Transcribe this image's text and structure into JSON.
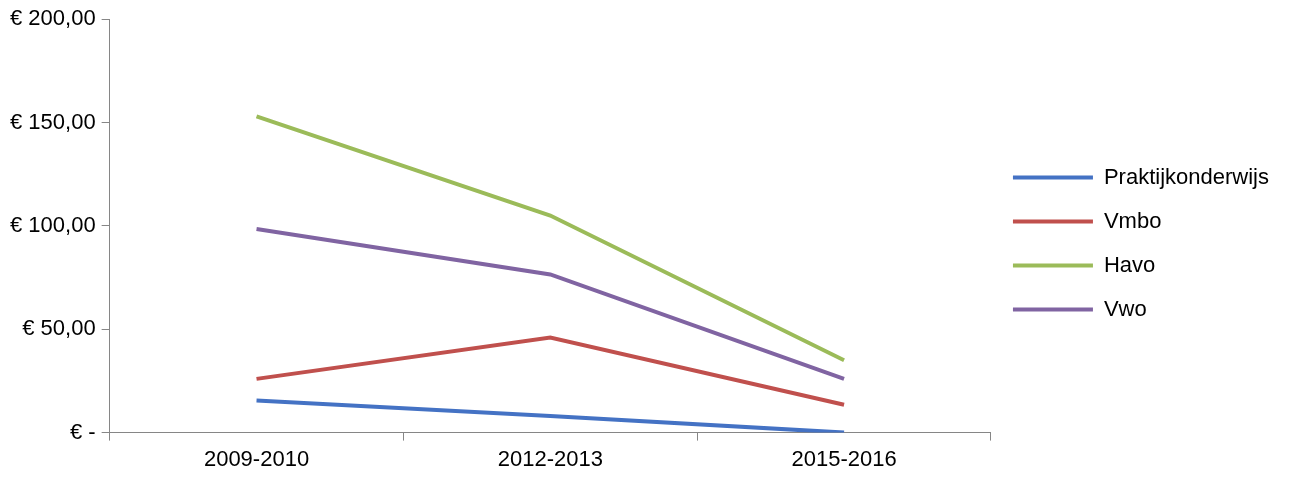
{
  "chart_data": {
    "type": "line",
    "categories": [
      "2009-2010",
      "2012-2013",
      "2015-2016"
    ],
    "series": [
      {
        "name": "Praktijkonderwijs",
        "color": "#4472c4",
        "values": [
          15.5,
          8,
          0
        ]
      },
      {
        "name": "Vmbo",
        "color": "#c0504d",
        "values": [
          26,
          46,
          13.5
        ]
      },
      {
        "name": "Havo",
        "color": "#9bbb59",
        "values": [
          153,
          105,
          35
        ]
      },
      {
        "name": "Vwo",
        "color": "#8064a2",
        "values": [
          98.5,
          76.5,
          26
        ]
      }
    ],
    "ylim": [
      0,
      200
    ],
    "yticks": [
      {
        "value": 0,
        "label": "€ -"
      },
      {
        "value": 50,
        "label": "€ 50,00"
      },
      {
        "value": 100,
        "label": "€ 100,00"
      },
      {
        "value": 150,
        "label": "€ 150,00"
      },
      {
        "value": 200,
        "label": "€ 200,00"
      }
    ],
    "grid": false,
    "legend": "right"
  }
}
